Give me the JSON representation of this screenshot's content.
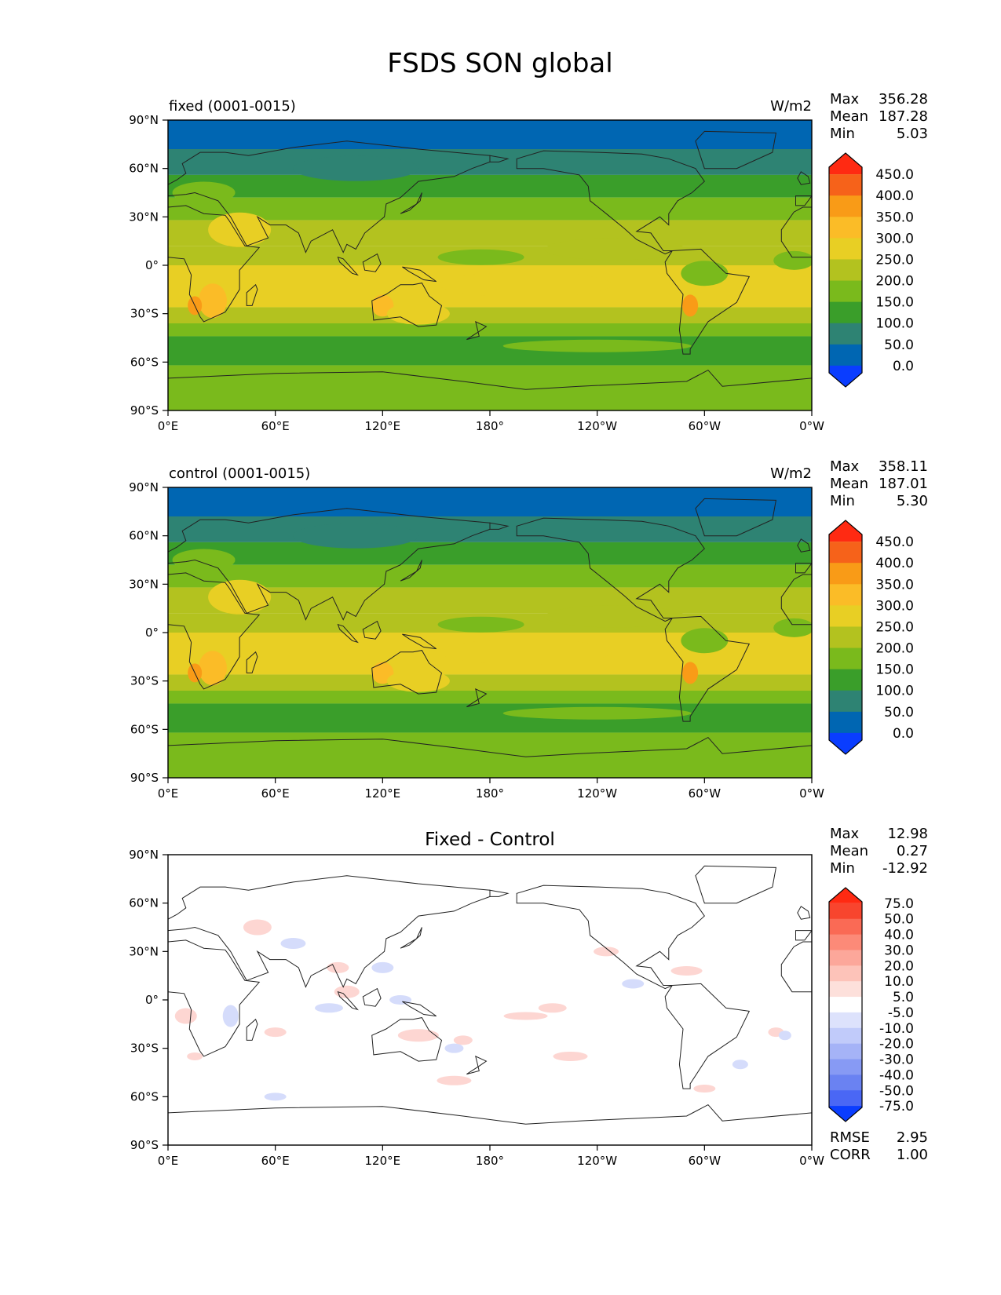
{
  "title": "FSDS SON global",
  "colors": {
    "ocean_deep": "#0066b2",
    "teal": "#2e8373",
    "green_dark": "#3a9e2a",
    "green": "#7aba1c",
    "olive": "#b3c21f",
    "yellow": "#e8cf24",
    "gold": "#fbbc27",
    "orange": "#f99b17",
    "orange_dark": "#f6621a",
    "red": "#ff2a12",
    "blue_low": "#0a3dff",
    "diff_pos": "#fdd6d2",
    "diff_neg": "#d5dcfb",
    "coast": "#222222"
  },
  "x_ticks": [
    "0°E",
    "60°E",
    "120°E",
    "180°",
    "120°W",
    "60°W",
    "0°W"
  ],
  "y_ticks": [
    "90°N",
    "60°N",
    "30°N",
    "0°",
    "30°S",
    "60°S",
    "90°S"
  ],
  "panels": [
    {
      "id": "fixed",
      "left_title": "fixed (0001-0015)",
      "center_title": "",
      "units": "W/m2",
      "stats": [
        {
          "label": "Max",
          "value": "356.28"
        },
        {
          "label": "Mean",
          "value": "187.28"
        },
        {
          "label": "Min",
          "value": "5.03"
        }
      ],
      "colorbar_labels": [
        "450.0",
        "400.0",
        "350.0",
        "300.0",
        "250.0",
        "200.0",
        "150.0",
        "100.0",
        "50.0",
        "0.0"
      ],
      "colorbar_colors": [
        "#ff2a12",
        "#f6621a",
        "#f99b17",
        "#fbbc27",
        "#e8cf24",
        "#b3c21f",
        "#7aba1c",
        "#3a9e2a",
        "#2e8373",
        "#0066b2",
        "#0a3dff"
      ],
      "footer_stats": []
    },
    {
      "id": "control",
      "left_title": "control (0001-0015)",
      "center_title": "",
      "units": "W/m2",
      "stats": [
        {
          "label": "Max",
          "value": "358.11"
        },
        {
          "label": "Mean",
          "value": "187.01"
        },
        {
          "label": "Min",
          "value": "5.30"
        }
      ],
      "colorbar_labels": [
        "450.0",
        "400.0",
        "350.0",
        "300.0",
        "250.0",
        "200.0",
        "150.0",
        "100.0",
        "50.0",
        "0.0"
      ],
      "colorbar_colors": [
        "#ff2a12",
        "#f6621a",
        "#f99b17",
        "#fbbc27",
        "#e8cf24",
        "#b3c21f",
        "#7aba1c",
        "#3a9e2a",
        "#2e8373",
        "#0066b2",
        "#0a3dff"
      ],
      "footer_stats": []
    },
    {
      "id": "diff",
      "left_title": "",
      "center_title": "Fixed - Control",
      "units": "",
      "stats": [
        {
          "label": "Max",
          "value": "12.98"
        },
        {
          "label": "Mean",
          "value": "0.27"
        },
        {
          "label": "Min",
          "value": "-12.92"
        }
      ],
      "colorbar_labels": [
        "75.0",
        "50.0",
        "40.0",
        "30.0",
        "20.0",
        "10.0",
        "5.0",
        "-5.0",
        "-10.0",
        "-20.0",
        "-30.0",
        "-40.0",
        "-50.0",
        "-75.0"
      ],
      "colorbar_colors": [
        "#ff2a12",
        "#f8452e",
        "#fa6a55",
        "#fc8a78",
        "#fca79a",
        "#fdc3b9",
        "#fde0db",
        "#ffffff",
        "#dde2fc",
        "#c1cbfa",
        "#a5b3f7",
        "#879af4",
        "#6a82f2",
        "#4a67f5",
        "#0a3dff"
      ],
      "footer_stats": [
        {
          "label": "RMSE",
          "value": "2.95"
        },
        {
          "label": "CORR",
          "value": "1.00"
        }
      ]
    }
  ]
}
